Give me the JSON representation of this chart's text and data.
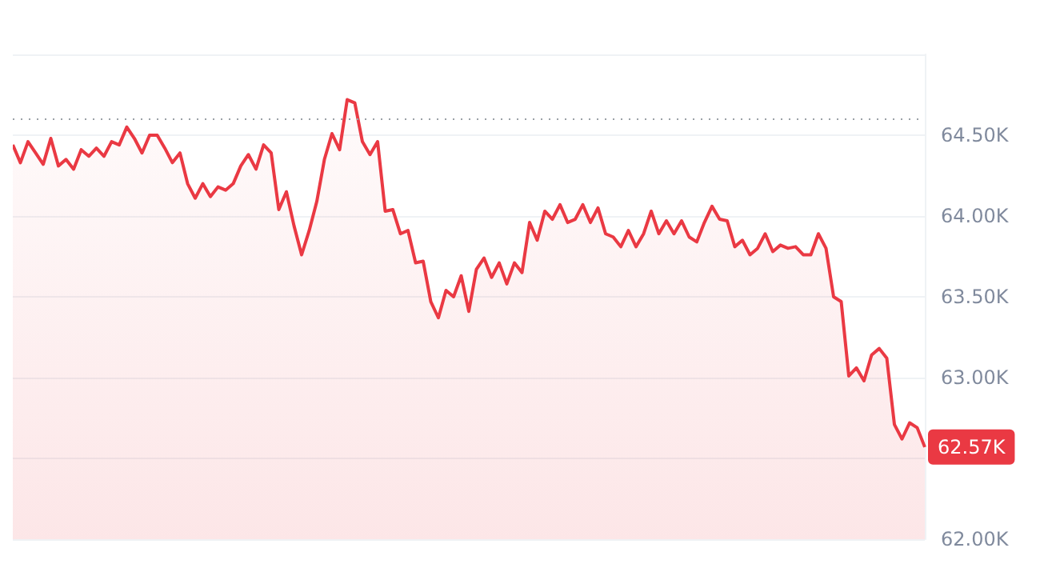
{
  "chart_data": {
    "type": "area",
    "categories": [
      null,
      null,
      null,
      null,
      null,
      null,
      null,
      null,
      null,
      null,
      null,
      null,
      null,
      null,
      null,
      null,
      null,
      null,
      null,
      null,
      null,
      null,
      null,
      null,
      null,
      null,
      null,
      null,
      null,
      null,
      null,
      null,
      null,
      null,
      null,
      null,
      null,
      null,
      null,
      null,
      null,
      null,
      null,
      null,
      null,
      null,
      null,
      null,
      null,
      null,
      null,
      null,
      null,
      null,
      null,
      null,
      null,
      null,
      null,
      null,
      null,
      null,
      null,
      null,
      null,
      null,
      null,
      null,
      null,
      null,
      null,
      null,
      null,
      null,
      null,
      null,
      null,
      null,
      null,
      null,
      null,
      null,
      null,
      null,
      null,
      null,
      null,
      null,
      null,
      null,
      null,
      null,
      null,
      null,
      null,
      null,
      null,
      null,
      null,
      null,
      null,
      null,
      null,
      null,
      null,
      null,
      null,
      null,
      null,
      null,
      null,
      null,
      null,
      null,
      null,
      null,
      null,
      null,
      null,
      null,
      null
    ],
    "series": [
      {
        "color": "#ea3943",
        "values": [
          64.44,
          64.33,
          64.46,
          64.39,
          64.32,
          64.48,
          64.31,
          64.35,
          64.29,
          64.41,
          64.37,
          64.42,
          64.37,
          64.46,
          64.44,
          64.55,
          64.48,
          64.39,
          64.5,
          64.5,
          64.42,
          64.33,
          64.39,
          64.2,
          64.11,
          64.2,
          64.12,
          64.18,
          64.16,
          64.2,
          64.31,
          64.38,
          64.29,
          64.44,
          64.39,
          64.04,
          64.15,
          63.94,
          63.76,
          63.91,
          64.09,
          64.35,
          64.51,
          64.41,
          64.72,
          64.7,
          64.46,
          64.38,
          64.46,
          64.03,
          64.04,
          63.89,
          63.91,
          63.71,
          63.72,
          63.47,
          63.37,
          63.54,
          63.5,
          63.63,
          63.41,
          63.67,
          63.74,
          63.62,
          63.71,
          63.58,
          63.71,
          63.65,
          63.96,
          63.85,
          64.03,
          63.98,
          64.07,
          63.96,
          63.98,
          64.07,
          63.96,
          64.05,
          63.89,
          63.87,
          63.81,
          63.91,
          63.81,
          63.89,
          64.03,
          63.89,
          63.97,
          63.89,
          63.97,
          63.87,
          63.84,
          63.96,
          64.06,
          63.98,
          63.97,
          63.81,
          63.85,
          63.76,
          63.8,
          63.89,
          63.78,
          63.82,
          63.8,
          63.81,
          63.76,
          63.76,
          63.89,
          63.8,
          63.5,
          63.47,
          63.01,
          63.06,
          62.98,
          63.14,
          63.18,
          63.12,
          62.71,
          62.62,
          62.72,
          62.69,
          62.57
        ],
        "value_labels": [
          null,
          null,
          null,
          null,
          null,
          null,
          null,
          null,
          null,
          null,
          null,
          null,
          null,
          null,
          null,
          null,
          null,
          null,
          null,
          null,
          null,
          null,
          null,
          null,
          null,
          null,
          null,
          null,
          null,
          null,
          null,
          null,
          null,
          null,
          null,
          null,
          null,
          null,
          null,
          null,
          null,
          null,
          null,
          null,
          null,
          null,
          null,
          null,
          null,
          null,
          null,
          null,
          null,
          null,
          null,
          null,
          null,
          null,
          null,
          null,
          null,
          null,
          null,
          null,
          null,
          null,
          null,
          null,
          null,
          null,
          null,
          null,
          null,
          null,
          null,
          null,
          null,
          null,
          null,
          null,
          null,
          null,
          null,
          null,
          null,
          null,
          null,
          null,
          null,
          null,
          null,
          null,
          null,
          null,
          null,
          null,
          null,
          null,
          null,
          null,
          null,
          null,
          null,
          null,
          null,
          null,
          null,
          null,
          null,
          null,
          null,
          null,
          null,
          null,
          null,
          null,
          null,
          null,
          null,
          null,
          "62.57K"
        ]
      }
    ],
    "ylim": [
      62,
      65
    ],
    "yticks": [
      {
        "value": 62,
        "label": "62.00K"
      },
      {
        "value": 62.5,
        "label": null
      },
      {
        "value": 63,
        "label": "63.00K"
      },
      {
        "value": 63.5,
        "label": "63.50K"
      },
      {
        "value": 64,
        "label": "64.00K"
      },
      {
        "value": 64.5,
        "label": "64.50K"
      },
      {
        "value": 65,
        "label": null
      }
    ],
    "grid": "y",
    "ref_lines": [
      {
        "axis": "y",
        "value": 64.6,
        "line_style": "dotted",
        "color": "#9aa0a6"
      }
    ]
  }
}
